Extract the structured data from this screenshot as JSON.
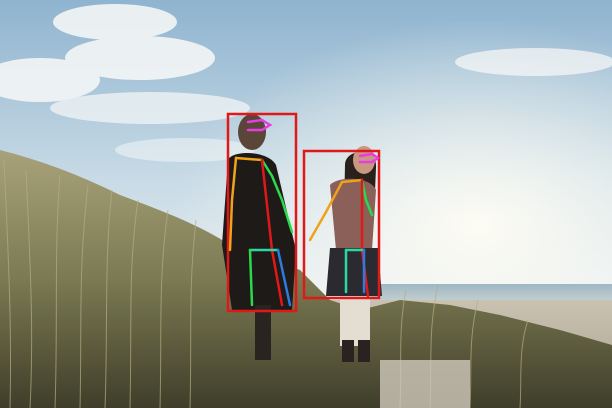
{
  "scene": {
    "description_label": "",
    "detections": [
      {
        "label": "",
        "box_color": "#e01818"
      },
      {
        "label": "",
        "box_color": "#e01818"
      }
    ],
    "skeleton_colors": {
      "head": "#e83be0",
      "torso_left": "#f0a21a",
      "torso_right": "#2bd94a",
      "arm_left": "#f0c21a",
      "arm_right": "#39e04a",
      "hip": "#2bd9a0",
      "leg_left": "#2bd94a",
      "leg_right": "#2b7be0",
      "spine": "#e01818"
    }
  }
}
